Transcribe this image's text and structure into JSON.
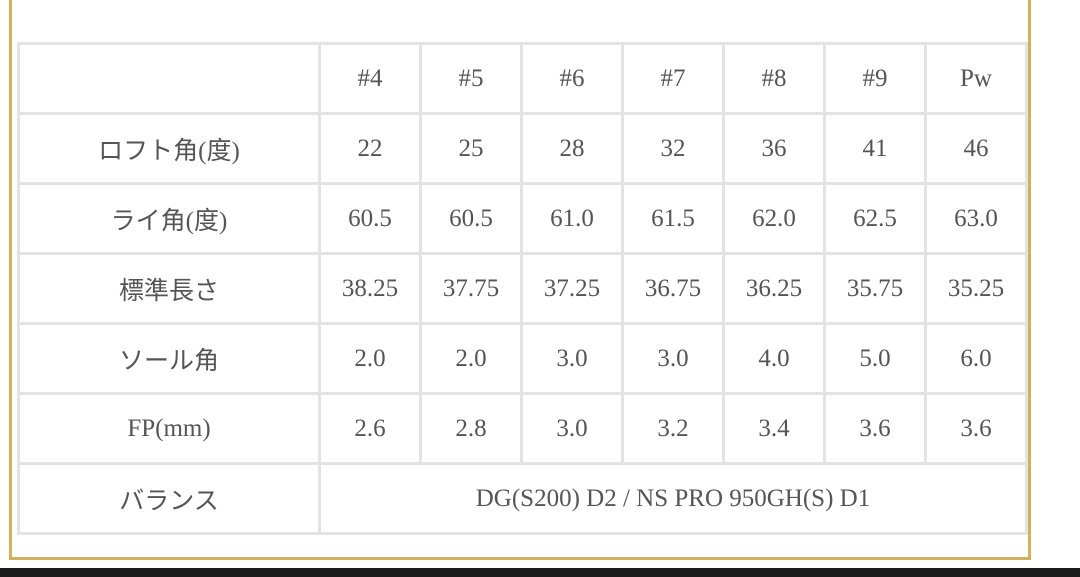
{
  "colors": {
    "frame": "#d4b05a",
    "grid": "#e3e3e3",
    "text": "#555555"
  },
  "table": {
    "header": [
      "",
      "#4",
      "#5",
      "#6",
      "#7",
      "#8",
      "#9",
      "Pw"
    ],
    "rows": [
      {
        "label": "ロフト角(度)",
        "values": [
          "22",
          "25",
          "28",
          "32",
          "36",
          "41",
          "46"
        ]
      },
      {
        "label": "ライ角(度)",
        "values": [
          "60.5",
          "60.5",
          "61.0",
          "61.5",
          "62.0",
          "62.5",
          "63.0"
        ]
      },
      {
        "label": "標準長さ",
        "values": [
          "38.25",
          "37.75",
          "37.25",
          "36.75",
          "36.25",
          "35.75",
          "35.25"
        ]
      },
      {
        "label": "ソール角",
        "values": [
          "2.0",
          "2.0",
          "3.0",
          "3.0",
          "4.0",
          "5.0",
          "6.0"
        ]
      },
      {
        "label": "FP(mm)",
        "values": [
          "2.6",
          "2.8",
          "3.0",
          "3.2",
          "3.4",
          "3.6",
          "3.6"
        ]
      }
    ],
    "balance": {
      "label": "バランス",
      "value": "DG(S200) D2 / NS PRO 950GH(S) D1"
    }
  }
}
